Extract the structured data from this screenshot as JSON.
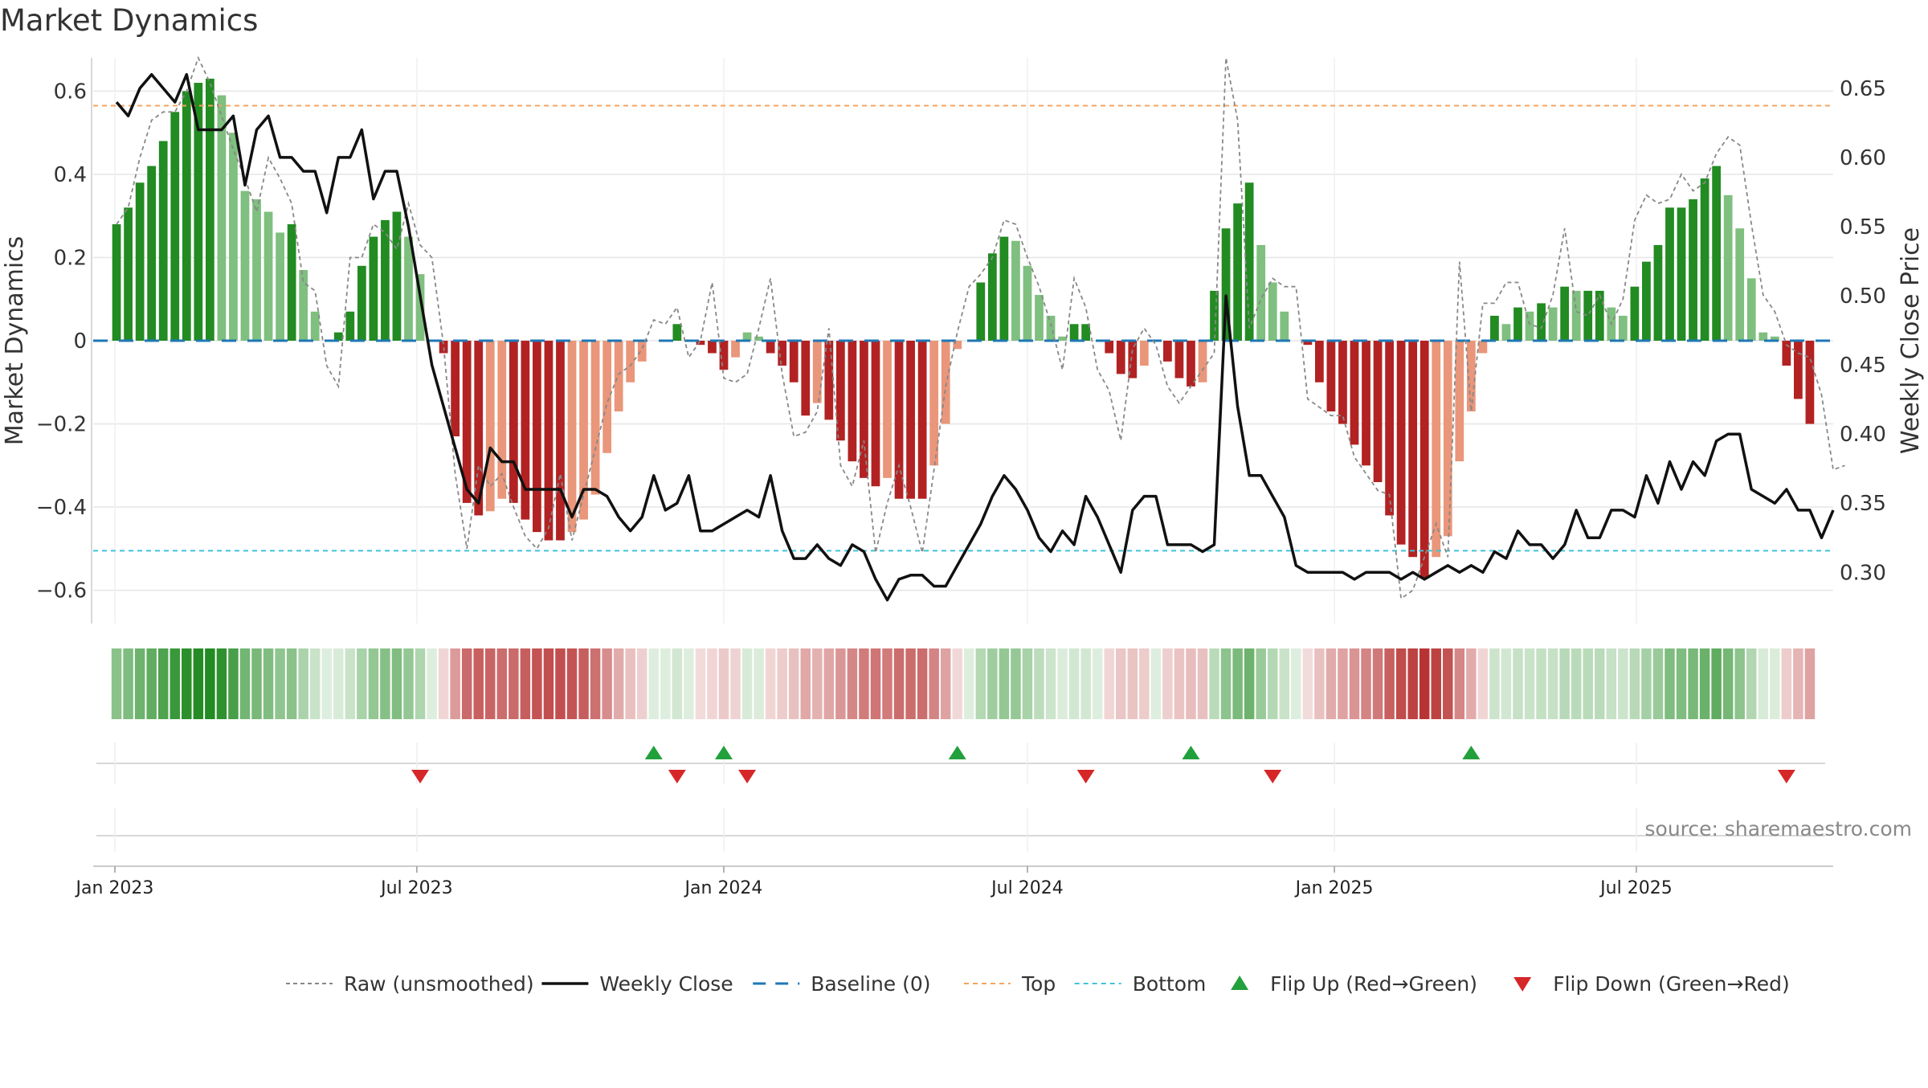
{
  "chart_data": {
    "type": "bar",
    "title": "Market Dynamics",
    "source": "source: sharemaestro.com",
    "time_axis": {
      "start": "2023-01-02",
      "frequency": "weekly",
      "ticks": [
        {
          "date": "2023-01-01",
          "label": "Jan 2023"
        },
        {
          "date": "2023-07-01",
          "label": "Jul 2023"
        },
        {
          "date": "2024-01-01",
          "label": "Jan 2024"
        },
        {
          "date": "2024-07-01",
          "label": "Jul 2024"
        },
        {
          "date": "2025-01-01",
          "label": "Jan 2025"
        },
        {
          "date": "2025-07-01",
          "label": "Jul 2025"
        }
      ]
    },
    "left_axis": {
      "label": "Market Dynamics",
      "ylim": [
        -0.68,
        0.68
      ],
      "ticks": [
        -0.6,
        -0.4,
        -0.2,
        0,
        0.2,
        0.4,
        0.6
      ],
      "tick_labels": [
        "−0.6",
        "−0.4",
        "−0.2",
        "0",
        "0.2",
        "0.4",
        "0.6"
      ]
    },
    "right_axis": {
      "label": "Weekly Close Price",
      "ylim": [
        0.263,
        0.672
      ],
      "ticks": [
        0.3,
        0.35,
        0.4,
        0.45,
        0.5,
        0.55,
        0.6,
        0.65
      ],
      "tick_labels": [
        "0.30",
        "0.35",
        "0.40",
        "0.45",
        "0.50",
        "0.55",
        "0.60",
        "0.65"
      ]
    },
    "thresholds": {
      "top": 0.565,
      "bottom": -0.505,
      "baseline": 0
    },
    "grid": true,
    "legend_position": "bottom",
    "series": [
      {
        "name": "Market Dynamics",
        "axis": "left",
        "values": [
          0.28,
          0.32,
          0.38,
          0.42,
          0.48,
          0.55,
          0.6,
          0.62,
          0.63,
          0.59,
          0.5,
          0.36,
          0.34,
          0.31,
          0.26,
          0.28,
          0.17,
          0.07,
          0,
          0.02,
          0.07,
          0.18,
          0.25,
          0.29,
          0.31,
          0.25,
          0.16,
          0,
          -0.03,
          -0.23,
          -0.39,
          -0.42,
          -0.41,
          -0.38,
          -0.39,
          -0.43,
          -0.46,
          -0.48,
          -0.48,
          -0.46,
          -0.43,
          -0.37,
          -0.27,
          -0.17,
          -0.1,
          -0.05,
          0,
          0,
          0.04,
          0,
          -0.01,
          -0.03,
          -0.07,
          -0.04,
          0.02,
          0.01,
          -0.03,
          -0.06,
          -0.1,
          -0.18,
          -0.15,
          -0.19,
          -0.24,
          -0.29,
          -0.33,
          -0.35,
          -0.33,
          -0.38,
          -0.38,
          -0.38,
          -0.3,
          -0.2,
          -0.02,
          0,
          0.14,
          0.21,
          0.25,
          0.24,
          0.18,
          0.11,
          0.06,
          0.01,
          0.04,
          0.04,
          0,
          -0.03,
          -0.08,
          -0.09,
          -0.06,
          0,
          -0.05,
          -0.09,
          -0.11,
          -0.1,
          0.12,
          0.27,
          0.33,
          0.38,
          0.23,
          0.14,
          0.07,
          0,
          -0.01,
          -0.1,
          -0.17,
          -0.2,
          -0.25,
          -0.3,
          -0.34,
          -0.42,
          -0.49,
          -0.52,
          -0.57,
          -0.52,
          -0.47,
          -0.29,
          -0.17,
          -0.03,
          0.06,
          0.04,
          0.08,
          0.07,
          0.09,
          0.08,
          0.13,
          0.12,
          0.12,
          0.12,
          0.08,
          0.06,
          0.13,
          0.19,
          0.23,
          0.32,
          0.32,
          0.34,
          0.39,
          0.42,
          0.35,
          0.27,
          0.15,
          0.02,
          0.01,
          -0.06,
          -0.14,
          -0.2
        ]
      },
      {
        "name": "Raw (unsmoothed)",
        "axis": "left",
        "values": [
          0.28,
          0.32,
          0.44,
          0.53,
          0.55,
          0.55,
          0.6,
          0.68,
          0.62,
          0.54,
          0.46,
          0.39,
          0.31,
          0.44,
          0.39,
          0.33,
          0.14,
          0.12,
          -0.06,
          -0.11,
          0.2,
          0.2,
          0.28,
          0.26,
          0.22,
          0.33,
          0.23,
          0.2,
          -0.01,
          -0.32,
          -0.5,
          -0.3,
          -0.35,
          -0.32,
          -0.4,
          -0.47,
          -0.5,
          -0.45,
          -0.32,
          -0.48,
          -0.37,
          -0.26,
          -0.15,
          -0.08,
          -0.06,
          -0.02,
          0.05,
          0.04,
          0.08,
          -0.04,
          0,
          0.14,
          -0.09,
          -0.1,
          -0.08,
          0.03,
          0.15,
          -0.08,
          -0.23,
          -0.22,
          -0.17,
          0.03,
          -0.3,
          -0.35,
          -0.24,
          -0.51,
          -0.39,
          -0.3,
          -0.4,
          -0.51,
          -0.31,
          -0.11,
          0.02,
          0.13,
          0.16,
          0.2,
          0.29,
          0.28,
          0.2,
          0.13,
          0.04,
          -0.07,
          0.15,
          0.08,
          -0.07,
          -0.12,
          -0.24,
          -0.02,
          0.03,
          -0.01,
          -0.11,
          -0.15,
          -0.11,
          -0.07,
          -0.03,
          0.68,
          0.53,
          0.03,
          0.1,
          0.15,
          0.13,
          0.13,
          -0.14,
          -0.16,
          -0.18,
          -0.18,
          -0.28,
          -0.32,
          -0.36,
          -0.37,
          -0.62,
          -0.6,
          -0.52,
          -0.44,
          -0.52,
          0.19,
          -0.17,
          0.09,
          0.09,
          0.14,
          0.14,
          0.04,
          0.03,
          0.11,
          0.27,
          0.07,
          0.06,
          0.11,
          0.04,
          0.1,
          0.29,
          0.35,
          0.33,
          0.34,
          0.4,
          0.36,
          0.38,
          0.45,
          0.49,
          0.47,
          0.28,
          0.11,
          0.07,
          -0.01,
          -0.03,
          -0.04,
          -0.13,
          -0.31,
          -0.3
        ]
      },
      {
        "name": "Weekly Close",
        "axis": "right",
        "values": [
          0.64,
          0.63,
          0.65,
          0.66,
          0.65,
          0.64,
          0.66,
          0.62,
          0.62,
          0.62,
          0.63,
          0.58,
          0.62,
          0.63,
          0.6,
          0.6,
          0.59,
          0.59,
          0.56,
          0.6,
          0.6,
          0.62,
          0.57,
          0.59,
          0.59,
          0.55,
          0.5,
          0.45,
          0.42,
          0.39,
          0.36,
          0.35,
          0.39,
          0.38,
          0.38,
          0.36,
          0.36,
          0.36,
          0.36,
          0.34,
          0.36,
          0.36,
          0.355,
          0.34,
          0.33,
          0.34,
          0.37,
          0.345,
          0.35,
          0.37,
          0.33,
          0.33,
          0.335,
          0.34,
          0.345,
          0.34,
          0.37,
          0.33,
          0.31,
          0.31,
          0.32,
          0.31,
          0.305,
          0.32,
          0.315,
          0.295,
          0.28,
          0.295,
          0.298,
          0.298,
          0.29,
          0.29,
          0.305,
          0.32,
          0.335,
          0.355,
          0.37,
          0.36,
          0.345,
          0.325,
          0.315,
          0.33,
          0.32,
          0.355,
          0.34,
          0.32,
          0.3,
          0.345,
          0.355,
          0.355,
          0.32,
          0.32,
          0.32,
          0.315,
          0.32,
          0.5,
          0.42,
          0.37,
          0.37,
          0.355,
          0.34,
          0.305,
          0.3,
          0.3,
          0.3,
          0.3,
          0.295,
          0.3,
          0.3,
          0.3,
          0.295,
          0.3,
          0.295,
          0.3,
          0.305,
          0.3,
          0.305,
          0.3,
          0.315,
          0.31,
          0.33,
          0.32,
          0.32,
          0.31,
          0.32,
          0.345,
          0.325,
          0.325,
          0.345,
          0.345,
          0.34,
          0.37,
          0.35,
          0.38,
          0.36,
          0.38,
          0.37,
          0.395,
          0.4,
          0.4,
          0.36,
          0.355,
          0.35,
          0.36,
          0.345,
          0.345,
          0.325,
          0.345
        ]
      }
    ],
    "strength_strip": {
      "description": "momentum shading per week",
      "uses_series": "Market Dynamics"
    },
    "flip_up_dates": [
      "2023-11-20",
      "2024-01-01",
      "2024-05-20",
      "2024-10-07",
      "2025-03-24"
    ],
    "flip_down_dates": [
      "2023-07-03",
      "2023-12-04",
      "2024-01-15",
      "2024-08-05",
      "2024-11-25",
      "2025-09-29"
    ],
    "legend": [
      {
        "key": "raw",
        "label": "Raw (unsmoothed)"
      },
      {
        "key": "close",
        "label": "Weekly Close"
      },
      {
        "key": "baseline",
        "label": "Baseline (0)"
      },
      {
        "key": "top",
        "label": "Top"
      },
      {
        "key": "bottom",
        "label": "Bottom"
      },
      {
        "key": "flipup",
        "label": "Flip Up (Red→Green)"
      },
      {
        "key": "flipdown",
        "label": "Flip Down (Green→Red)"
      }
    ]
  },
  "colors": {
    "pos_strong": "#228b22",
    "pos_weak": "#7fbf7f",
    "neg_strong": "#b22222",
    "neg_weak": "#e9967a",
    "close_line": "#111111",
    "raw_line": "#888888",
    "baseline": "#1f77b4",
    "top": "#f4a460",
    "bottom": "#40c4d8",
    "flip_up": "#22a03c",
    "flip_down": "#d62728"
  }
}
